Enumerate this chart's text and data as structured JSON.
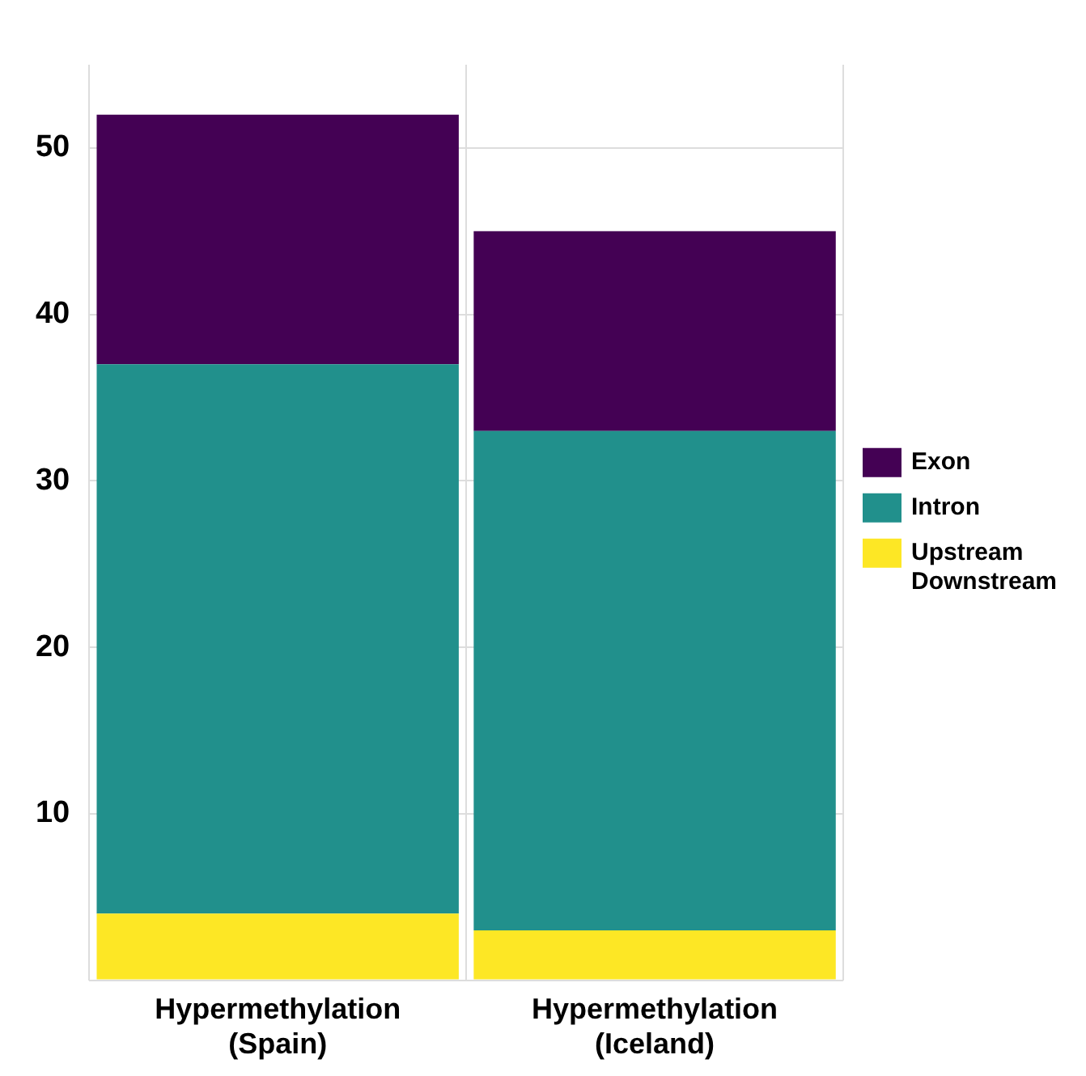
{
  "chart_data": {
    "type": "bar",
    "stacked": true,
    "categories": [
      "Hypermethylation (Spain)",
      "Hypermethylation (Iceland)"
    ],
    "series": [
      {
        "name": "Upstream Downstream",
        "color": "#fde725",
        "values": [
          4,
          3
        ]
      },
      {
        "name": "Intron",
        "color": "#21908c",
        "values": [
          33,
          30
        ]
      },
      {
        "name": "Exon",
        "color": "#440154",
        "values": [
          15,
          12
        ]
      }
    ],
    "ylim": [
      0,
      55
    ],
    "yticks": [
      {
        "value": 0,
        "label": null
      },
      10,
      20,
      30,
      40,
      50
    ],
    "grid": true,
    "legend": "right"
  }
}
